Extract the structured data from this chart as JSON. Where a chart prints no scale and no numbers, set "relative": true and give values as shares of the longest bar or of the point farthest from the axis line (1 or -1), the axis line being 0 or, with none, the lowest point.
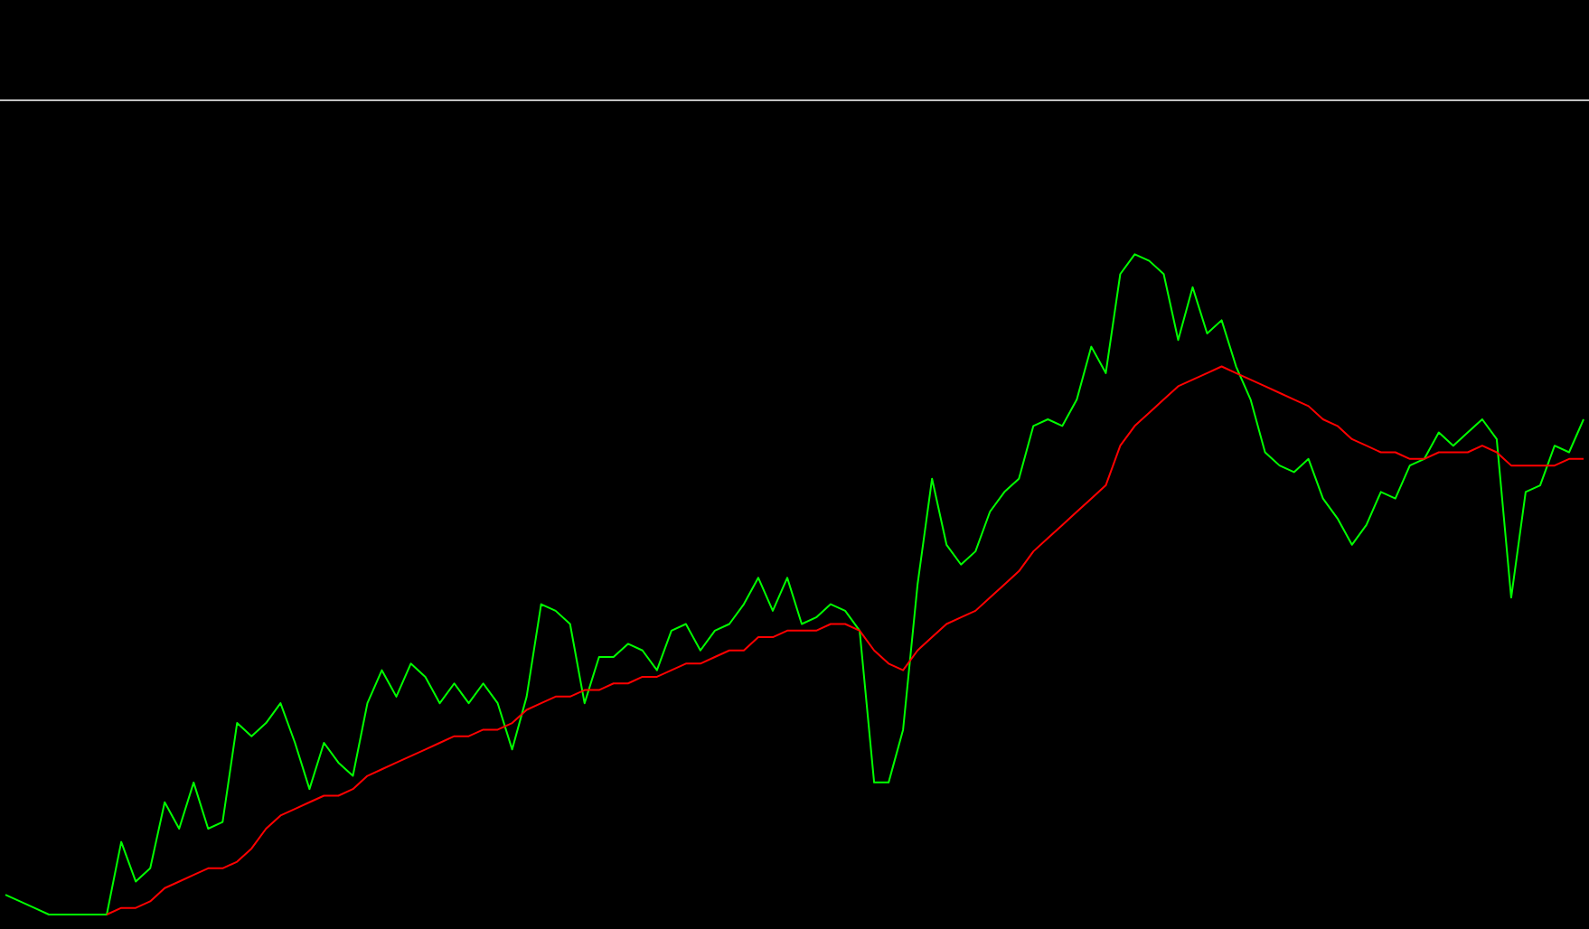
{
  "chart_data": {
    "type": "line",
    "relative": true,
    "grid": false,
    "marker": "none",
    "line_style": "solid",
    "categories": [
      null,
      null,
      null,
      null,
      null,
      null,
      null,
      null,
      null,
      null,
      null,
      null,
      null,
      null,
      null,
      null,
      null,
      null,
      null,
      null,
      null,
      null,
      null,
      null,
      null,
      null,
      null,
      null,
      null,
      null,
      null,
      null,
      null,
      null,
      null,
      null,
      null,
      null,
      null,
      null,
      null,
      null,
      null,
      null,
      null,
      null,
      null,
      null,
      null,
      null,
      null,
      null,
      null,
      null,
      null,
      null,
      null,
      null,
      null,
      null,
      null,
      null,
      null,
      null,
      null,
      null,
      null,
      null,
      null,
      null,
      null,
      null,
      null,
      null,
      null,
      null,
      null,
      null,
      null,
      null,
      null,
      null,
      null,
      null,
      null,
      null,
      null,
      null,
      null,
      null,
      null,
      null,
      null,
      null,
      null,
      null,
      null,
      null,
      null,
      null,
      null,
      null,
      null,
      null,
      null,
      null,
      null,
      null,
      null,
      null
    ],
    "series": [
      {
        "color": "#00ff00",
        "values": [
          0.03,
          0.02,
          0.01,
          0,
          0,
          0,
          0,
          0,
          0.11,
          0.05,
          0.07,
          0.17,
          0.13,
          0.2,
          0.13,
          0.14,
          0.29,
          0.27,
          0.29,
          0.32,
          0.26,
          0.19,
          0.26,
          0.23,
          0.21,
          0.32,
          0.37,
          0.33,
          0.38,
          0.36,
          0.32,
          0.35,
          0.32,
          0.35,
          0.32,
          0.25,
          0.33,
          0.47,
          0.46,
          0.44,
          0.32,
          0.39,
          0.39,
          0.41,
          0.4,
          0.37,
          0.43,
          0.44,
          0.4,
          0.43,
          0.44,
          0.47,
          0.51,
          0.46,
          0.51,
          0.44,
          0.45,
          0.47,
          0.46,
          0.43,
          0.2,
          0.2,
          0.28,
          0.5,
          0.66,
          0.56,
          0.53,
          0.55,
          0.61,
          0.64,
          0.66,
          0.74,
          0.75,
          0.74,
          0.78,
          0.86,
          0.82,
          0.97,
          1,
          0.99,
          0.97,
          0.87,
          0.95,
          0.88,
          0.9,
          0.83,
          0.78,
          0.7,
          0.68,
          0.67,
          0.69,
          0.63,
          0.6,
          0.56,
          0.59,
          0.64,
          0.63,
          0.68,
          0.69,
          0.73,
          0.71,
          0.73,
          0.75,
          0.72,
          0.48,
          0.64,
          0.65,
          0.71,
          0.7,
          0.75
        ]
      },
      {
        "color": "#ff0000",
        "values": [
          null,
          null,
          null,
          null,
          null,
          null,
          null,
          0,
          0.01,
          0.01,
          0.02,
          0.04,
          0.05,
          0.06,
          0.07,
          0.07,
          0.08,
          0.1,
          0.13,
          0.15,
          0.16,
          0.17,
          0.18,
          0.18,
          0.19,
          0.21,
          0.22,
          0.23,
          0.24,
          0.25,
          0.26,
          0.27,
          0.27,
          0.28,
          0.28,
          0.29,
          0.31,
          0.32,
          0.33,
          0.33,
          0.34,
          0.34,
          0.35,
          0.35,
          0.36,
          0.36,
          0.37,
          0.38,
          0.38,
          0.39,
          0.4,
          0.4,
          0.42,
          0.42,
          0.43,
          0.43,
          0.43,
          0.44,
          0.44,
          0.43,
          0.4,
          0.38,
          0.37,
          0.4,
          0.42,
          0.44,
          0.45,
          0.46,
          0.48,
          0.5,
          0.52,
          0.55,
          0.57,
          0.59,
          0.61,
          0.63,
          0.65,
          0.71,
          0.74,
          0.76,
          0.78,
          0.8,
          0.81,
          0.82,
          0.83,
          0.82,
          0.81,
          0.8,
          0.79,
          0.78,
          0.77,
          0.75,
          0.74,
          0.72,
          0.71,
          0.7,
          0.7,
          0.69,
          0.69,
          0.7,
          0.7,
          0.7,
          0.71,
          0.7,
          0.68,
          0.68,
          0.68,
          0.68,
          0.69,
          0.69
        ]
      }
    ]
  }
}
